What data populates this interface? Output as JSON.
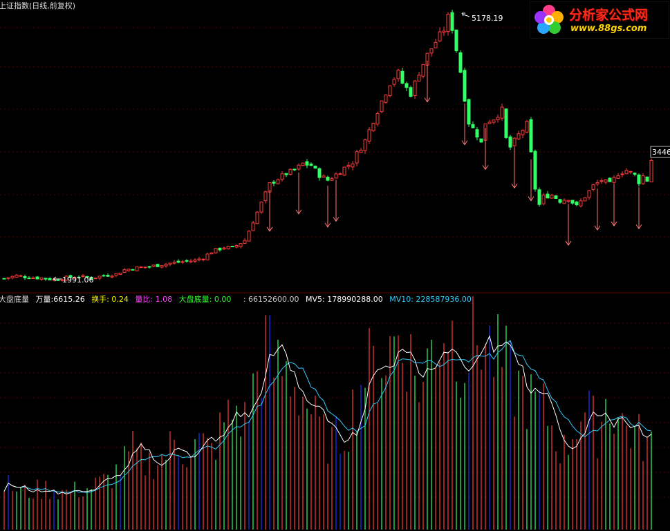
{
  "title": "上证指数(日线,前复权)",
  "logo": {
    "brand": "分析家公式网",
    "url": "www.88gs.com"
  },
  "colors": {
    "background": "#000000",
    "up": "#ff3b3b",
    "down": "#33ff66",
    "grid": "#5a0000",
    "blue_bar": "#2233ff",
    "mv5": "#ffffff",
    "mv10": "#33ccff",
    "arrow": "#ff7777"
  },
  "price_labels": {
    "high": "5178.19",
    "low": "1991.06",
    "last": "3446"
  },
  "indicator": {
    "name": "大盘底量",
    "items": [
      {
        "label": "万量",
        "value": "6615.26",
        "color": "#ffffff"
      },
      {
        "label": "换手",
        "value": "0.24",
        "color": "#ffff00"
      },
      {
        "label": "量比",
        "value": "1.08",
        "color": "#ff44ff"
      },
      {
        "label": "大盘底量",
        "value": "0.00",
        "color": "#33ff33"
      },
      {
        "label": "",
        "value": "66152600.00",
        "color": "#cccccc"
      },
      {
        "label": "MV5",
        "value": "178990288.00",
        "color": "#ffffff"
      },
      {
        "label": "MV10",
        "value": "228587936.00",
        "color": "#33ccff"
      }
    ]
  },
  "chart_data": [
    {
      "type": "candlestick",
      "title": "上证指数(日线,前复权)",
      "annotations": [
        "5178.19",
        "1991.06",
        "3446"
      ],
      "close_path": [
        [
          0,
          2005
        ],
        [
          3,
          2040
        ],
        [
          6,
          2018
        ],
        [
          9,
          2010
        ],
        [
          12,
          1991.06
        ],
        [
          15,
          2015
        ],
        [
          18,
          2030
        ],
        [
          21,
          2010
        ],
        [
          24,
          2040
        ],
        [
          27,
          2060
        ],
        [
          29,
          2110
        ],
        [
          32,
          2135
        ],
        [
          35,
          2150
        ],
        [
          38,
          2175
        ],
        [
          40,
          2190
        ],
        [
          43,
          2210
        ],
        [
          46,
          2225
        ],
        [
          48,
          2260
        ],
        [
          50,
          2330
        ],
        [
          53,
          2385
        ],
        [
          55,
          2375
        ],
        [
          58,
          2470
        ],
        [
          60,
          2700
        ],
        [
          62,
          2920
        ],
        [
          64,
          3150
        ],
        [
          66,
          3220
        ],
        [
          68,
          3280
        ],
        [
          70,
          3320
        ],
        [
          72,
          3400
        ],
        [
          74,
          3380
        ],
        [
          76,
          3260
        ],
        [
          78,
          3200
        ],
        [
          80,
          3270
        ],
        [
          82,
          3350
        ],
        [
          84,
          3420
        ],
        [
          85,
          3520
        ],
        [
          87,
          3680
        ],
        [
          89,
          3930
        ],
        [
          91,
          4160
        ],
        [
          93,
          4380
        ],
        [
          95,
          4500
        ],
        [
          96,
          4380
        ],
        [
          98,
          4250
        ],
        [
          100,
          4510
        ],
        [
          102,
          4720
        ],
        [
          104,
          4880
        ],
        [
          106,
          5030
        ],
        [
          107,
          5178.19
        ],
        [
          108,
          5050
        ],
        [
          110,
          4520
        ],
        [
          111,
          4200
        ],
        [
          112,
          3900
        ],
        [
          114,
          3750
        ],
        [
          115,
          3650
        ],
        [
          116,
          3900
        ],
        [
          118,
          3950
        ],
        [
          120,
          4050
        ],
        [
          121,
          3700
        ],
        [
          122,
          3600
        ],
        [
          124,
          3750
        ],
        [
          126,
          3880
        ],
        [
          127,
          3520
        ],
        [
          128,
          3100
        ],
        [
          129,
          2900
        ],
        [
          130,
          3000
        ],
        [
          132,
          3020
        ],
        [
          134,
          2950
        ],
        [
          136,
          2980
        ],
        [
          138,
          2880
        ],
        [
          140,
          3000
        ],
        [
          142,
          3130
        ],
        [
          144,
          3200
        ],
        [
          146,
          3150
        ],
        [
          148,
          3280
        ],
        [
          150,
          3320
        ],
        [
          152,
          3260
        ],
        [
          153,
          3180
        ],
        [
          154,
          3250
        ],
        [
          155,
          3200
        ],
        [
          156,
          3446
        ]
      ],
      "down_arrows_at": [
        64,
        71,
        78,
        80,
        102,
        111,
        116,
        123,
        127,
        136,
        143,
        147,
        153
      ]
    },
    {
      "type": "bar",
      "title": "大盘底量",
      "series": [
        {
          "name": "万量",
          "last": 6615.26
        },
        {
          "name": "MV5",
          "last": 178990288.0
        },
        {
          "name": "MV10",
          "last": 228587936.0
        }
      ],
      "volume_path": [
        [
          0,
          0.22
        ],
        [
          5,
          0.18
        ],
        [
          10,
          0.2
        ],
        [
          15,
          0.18
        ],
        [
          20,
          0.2
        ],
        [
          25,
          0.24
        ],
        [
          28,
          0.3
        ],
        [
          31,
          0.38
        ],
        [
          34,
          0.32
        ],
        [
          38,
          0.35
        ],
        [
          41,
          0.42
        ],
        [
          44,
          0.38
        ],
        [
          47,
          0.42
        ],
        [
          50,
          0.38
        ],
        [
          53,
          0.52
        ],
        [
          56,
          0.58
        ],
        [
          58,
          0.52
        ],
        [
          60,
          0.68
        ],
        [
          63,
          0.9
        ],
        [
          65,
          0.78
        ],
        [
          67,
          0.78
        ],
        [
          69,
          0.75
        ],
        [
          71,
          0.68
        ],
        [
          73,
          0.62
        ],
        [
          75,
          0.52
        ],
        [
          77,
          0.45
        ],
        [
          79,
          0.42
        ],
        [
          81,
          0.45
        ],
        [
          83,
          0.52
        ],
        [
          85,
          0.65
        ],
        [
          87,
          0.78
        ],
        [
          89,
          0.78
        ],
        [
          91,
          0.82
        ],
        [
          93,
          0.88
        ],
        [
          95,
          0.95
        ],
        [
          97,
          0.9
        ],
        [
          99,
          0.75
        ],
        [
          101,
          0.7
        ],
        [
          103,
          0.9
        ],
        [
          105,
          0.95
        ],
        [
          107,
          1.0
        ],
        [
          109,
          0.9
        ],
        [
          111,
          0.85
        ],
        [
          113,
          0.9
        ],
        [
          115,
          0.95
        ],
        [
          117,
          0.88
        ],
        [
          119,
          0.82
        ],
        [
          121,
          0.78
        ],
        [
          123,
          0.7
        ],
        [
          125,
          0.68
        ],
        [
          127,
          0.62
        ],
        [
          129,
          0.6
        ],
        [
          131,
          0.55
        ],
        [
          133,
          0.45
        ],
        [
          135,
          0.38
        ],
        [
          137,
          0.48
        ],
        [
          139,
          0.58
        ],
        [
          141,
          0.55
        ],
        [
          143,
          0.48
        ],
        [
          145,
          0.62
        ],
        [
          147,
          0.58
        ],
        [
          149,
          0.52
        ],
        [
          151,
          0.48
        ],
        [
          153,
          0.45
        ],
        [
          156,
          0.4
        ]
      ]
    }
  ]
}
